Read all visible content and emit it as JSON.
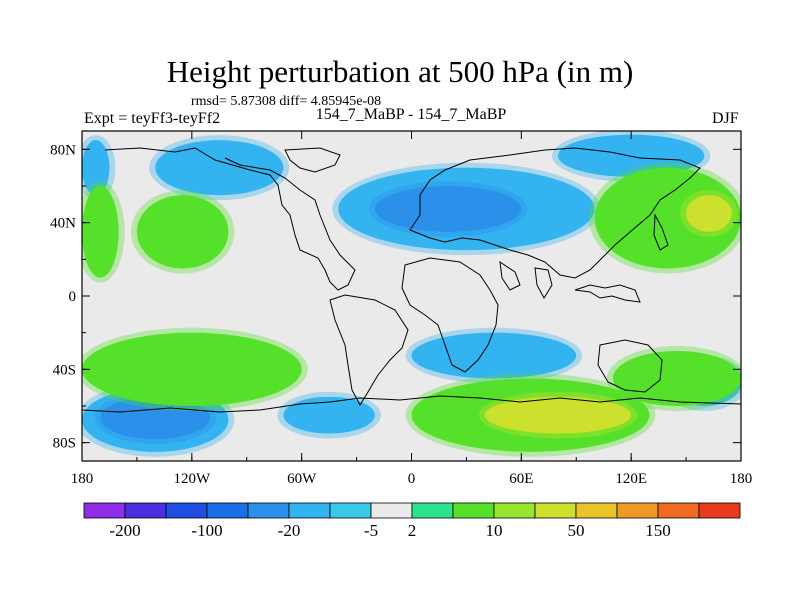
{
  "header": {
    "title": "Height perturbation at 500 hPa (in m)",
    "stats": "rmsd= 5.87308 diff= 4.85945e-08",
    "experiment": "Expt = teyFf3-teyFf2",
    "run": "154_7_MaBP - 154_7_MaBP",
    "season": "DJF"
  },
  "map_data": {
    "type": "filled-contour-map",
    "projection": "cylindrical-equidistant",
    "variable": "500 hPa height perturbation",
    "units": "m",
    "lon_range": [
      -180,
      180
    ],
    "lat_range": [
      -90,
      90
    ],
    "lon_tick_labels": [
      "180",
      "120W",
      "60W",
      "0",
      "60E",
      "120E",
      "180"
    ],
    "lat_tick_labels": [
      "80N",
      "40N",
      "0",
      "40S",
      "80S"
    ],
    "colorbar": {
      "tick_labels": [
        "-200",
        "-100",
        "-20",
        "-5",
        "2",
        "10",
        "50",
        "150"
      ],
      "colors": [
        "#8e2ee8",
        "#4a2fe0",
        "#1f4fe2",
        "#1b6fe6",
        "#2a90ea",
        "#33b3ef",
        "#39c8e8",
        "#eaeaea",
        "#2ce28c",
        "#55e02a",
        "#99e62e",
        "#cce02e",
        "#e8c42a",
        "#f09a26",
        "#f06a22",
        "#e83a1c"
      ]
    },
    "regions": [
      {
        "sign": "negative",
        "level": -5,
        "lon_range": [
          -140,
          -70
        ],
        "lat_range": [
          55,
          85
        ]
      },
      {
        "sign": "negative",
        "level": -5,
        "lon_range": [
          -40,
          100
        ],
        "lat_range": [
          25,
          70
        ]
      },
      {
        "sign": "negative",
        "level": -20,
        "lon_range": [
          -20,
          60
        ],
        "lat_range": [
          35,
          60
        ]
      },
      {
        "sign": "negative",
        "level": -5,
        "lon_range": [
          80,
          160
        ],
        "lat_range": [
          65,
          88
        ]
      },
      {
        "sign": "negative",
        "level": -5,
        "lon_range": [
          -180,
          -100
        ],
        "lat_range": [
          -85,
          -50
        ]
      },
      {
        "sign": "negative",
        "level": -20,
        "lon_range": [
          -170,
          -110
        ],
        "lat_range": [
          -78,
          -55
        ]
      },
      {
        "sign": "negative",
        "level": -5,
        "lon_range": [
          0,
          90
        ],
        "lat_range": [
          -45,
          -20
        ]
      },
      {
        "sign": "negative",
        "level": -5,
        "lon_range": [
          -70,
          -20
        ],
        "lat_range": [
          -75,
          -55
        ]
      },
      {
        "sign": "negative",
        "level": -5,
        "lon_range": [
          140,
          180
        ],
        "lat_range": [
          -60,
          -35
        ]
      },
      {
        "sign": "negative",
        "level": -5,
        "lon_range": [
          -180,
          -165
        ],
        "lat_range": [
          55,
          85
        ]
      },
      {
        "sign": "positive",
        "level": 10,
        "lon_range": [
          -180,
          -160
        ],
        "lat_range": [
          10,
          60
        ]
      },
      {
        "sign": "positive",
        "level": 10,
        "lon_range": [
          -150,
          -100
        ],
        "lat_range": [
          15,
          55
        ]
      },
      {
        "sign": "positive",
        "level": 10,
        "lon_range": [
          100,
          180
        ],
        "lat_range": [
          15,
          70
        ]
      },
      {
        "sign": "positive",
        "level": 50,
        "lon_range": [
          150,
          175
        ],
        "lat_range": [
          35,
          55
        ]
      },
      {
        "sign": "positive",
        "level": 10,
        "lon_range": [
          -180,
          -60
        ],
        "lat_range": [
          -60,
          -20
        ]
      },
      {
        "sign": "positive",
        "level": 10,
        "lon_range": [
          0,
          130
        ],
        "lat_range": [
          -85,
          -45
        ]
      },
      {
        "sign": "positive",
        "level": 50,
        "lon_range": [
          40,
          120
        ],
        "lat_range": [
          -75,
          -55
        ]
      },
      {
        "sign": "positive",
        "level": 10,
        "lon_range": [
          110,
          180
        ],
        "lat_range": [
          -60,
          -30
        ]
      }
    ]
  }
}
